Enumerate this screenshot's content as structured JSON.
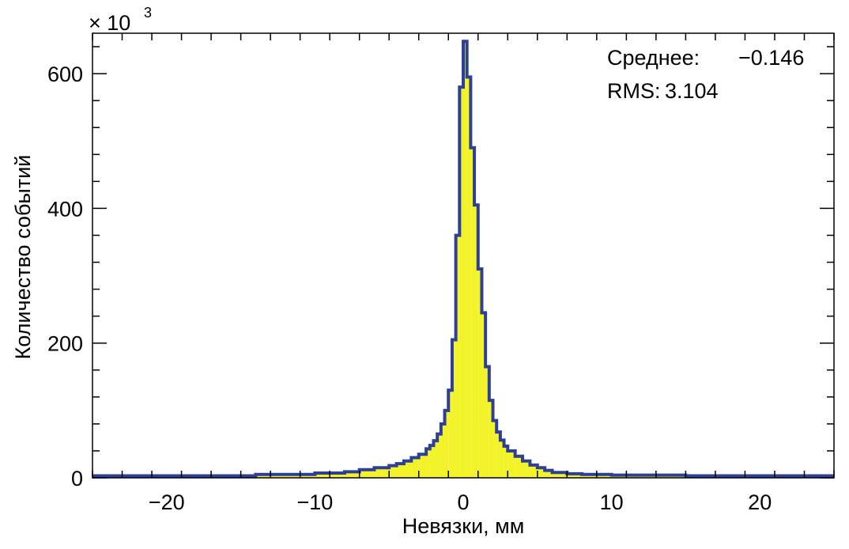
{
  "chart_data": {
    "type": "histogram",
    "xlabel": "Невязки, мм",
    "ylabel": "Количество событий",
    "y_multiplier": "× 10",
    "y_multiplier_exp": "3",
    "xlim": [
      -25,
      25
    ],
    "ylim": [
      0,
      660
    ],
    "x_ticks": [
      -20,
      -10,
      0,
      10,
      20
    ],
    "x_tick_labels": [
      "−20",
      "−10",
      "0",
      "10",
      "20"
    ],
    "y_ticks": [
      0,
      200,
      400,
      600
    ],
    "y_tick_labels": [
      "0",
      "200",
      "400",
      "600"
    ],
    "grid": false,
    "fill_color": "#f3f32a",
    "line_color": "#2e3f98",
    "stats": {
      "mean_label": "Среднее:",
      "mean_value": "−0.146",
      "rms_label": "RMS:",
      "rms_value": "3.104"
    },
    "bin_width": 0.25,
    "bins": [
      [
        -25.0,
        3
      ],
      [
        -14.0,
        5
      ],
      [
        -10.0,
        7
      ],
      [
        -8.0,
        9
      ],
      [
        -7.0,
        12
      ],
      [
        -6.0,
        15
      ],
      [
        -5.0,
        18
      ],
      [
        -4.5,
        21
      ],
      [
        -4.0,
        25
      ],
      [
        -3.5,
        30
      ],
      [
        -3.0,
        35
      ],
      [
        -2.5,
        43
      ],
      [
        -2.25,
        48
      ],
      [
        -2.0,
        55
      ],
      [
        -1.75,
        65
      ],
      [
        -1.5,
        80
      ],
      [
        -1.25,
        100
      ],
      [
        -1.0,
        130
      ],
      [
        -0.75,
        205
      ],
      [
        -0.5,
        360
      ],
      [
        -0.25,
        580
      ],
      [
        0.0,
        648
      ],
      [
        0.25,
        595
      ],
      [
        0.5,
        490
      ],
      [
        0.75,
        405
      ],
      [
        1.0,
        310
      ],
      [
        1.25,
        245
      ],
      [
        1.5,
        165
      ],
      [
        1.75,
        115
      ],
      [
        2.0,
        85
      ],
      [
        2.25,
        68
      ],
      [
        2.5,
        56
      ],
      [
        2.75,
        47
      ],
      [
        3.0,
        40
      ],
      [
        3.5,
        32
      ],
      [
        4.0,
        25
      ],
      [
        4.5,
        19
      ],
      [
        5.0,
        15
      ],
      [
        5.5,
        11
      ],
      [
        6.0,
        8
      ],
      [
        7.0,
        6
      ],
      [
        8.0,
        5
      ],
      [
        10.0,
        4
      ],
      [
        15.0,
        3
      ],
      [
        20.0,
        3
      ],
      [
        25.0,
        3
      ]
    ]
  }
}
